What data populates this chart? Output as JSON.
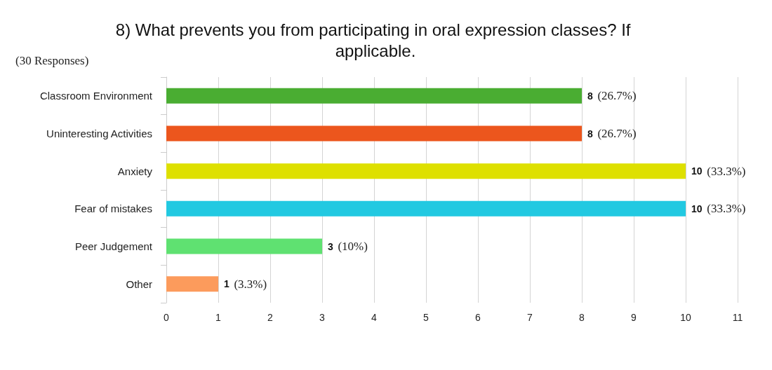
{
  "chart_data": {
    "type": "bar",
    "orientation": "horizontal",
    "title": "8) What prevents you from participating in oral expression classes? If applicable.",
    "annotations": [
      "(30 Responses)"
    ],
    "categories": [
      "Classroom Environment",
      "Uninteresting Activities",
      "Anxiety",
      "Fear of mistakes",
      "Peer Judgement",
      "Other"
    ],
    "values": [
      8,
      8,
      10,
      10,
      3,
      1
    ],
    "colors": [
      "#4aad32",
      "#ec561d",
      "#dee000",
      "#22c9e1",
      "#5fe171",
      "#fc9b5c"
    ],
    "value_labels": [
      "8 (26.7%)",
      "8 (26.7%)",
      "10 (33.3%)",
      "10 (33.3%)",
      "3 (10%)",
      "1 (3.3%)"
    ],
    "xlim": [
      0,
      11
    ],
    "xticks": [
      0,
      1,
      2,
      3,
      4,
      5,
      6,
      7,
      8,
      9,
      10,
      11
    ],
    "grid": "x"
  }
}
